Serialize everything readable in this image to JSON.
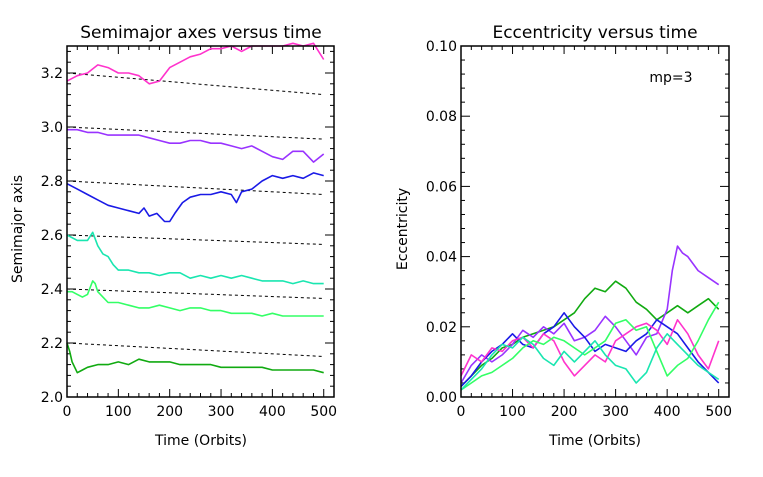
{
  "chart_data": [
    {
      "type": "line",
      "title": "Semimajor axes versus time",
      "xlabel": "Time (Orbits)",
      "ylabel": "Semimajor axis",
      "xlim": [
        0,
        520
      ],
      "ylim": [
        2.0,
        3.3
      ],
      "xticks": [
        "0",
        "100",
        "200",
        "300",
        "400",
        "500"
      ],
      "xtick_values": [
        0,
        100,
        200,
        300,
        400,
        500
      ],
      "yticks": [
        "2.0",
        "2.2",
        "2.4",
        "2.6",
        "2.8",
        "3.0",
        "3.2"
      ],
      "ytick_values": [
        2.0,
        2.2,
        2.4,
        2.6,
        2.8,
        3.0,
        3.2
      ],
      "reference_lines": [
        {
          "name": "ref-3.2",
          "x": [
            0,
            500
          ],
          "y": [
            3.2,
            3.12
          ],
          "color": "#000000",
          "dash": true
        },
        {
          "name": "ref-3.0",
          "x": [
            0,
            500
          ],
          "y": [
            3.0,
            2.955
          ],
          "color": "#000000",
          "dash": true
        },
        {
          "name": "ref-2.8",
          "x": [
            0,
            500
          ],
          "y": [
            2.8,
            2.75
          ],
          "color": "#000000",
          "dash": true
        },
        {
          "name": "ref-2.6",
          "x": [
            0,
            500
          ],
          "y": [
            2.6,
            2.565
          ],
          "color": "#000000",
          "dash": true
        },
        {
          "name": "ref-2.4",
          "x": [
            0,
            500
          ],
          "y": [
            2.4,
            2.365
          ],
          "color": "#000000",
          "dash": true
        },
        {
          "name": "ref-2.2",
          "x": [
            0,
            500
          ],
          "y": [
            2.2,
            2.15
          ],
          "color": "#000000",
          "dash": true
        }
      ],
      "series": [
        {
          "name": "magenta",
          "color": "#ff33cc",
          "x": [
            0,
            20,
            40,
            60,
            80,
            100,
            120,
            140,
            160,
            180,
            200,
            220,
            240,
            260,
            280,
            300,
            320,
            340,
            360,
            380,
            400,
            420,
            440,
            460,
            480,
            500
          ],
          "y": [
            3.17,
            3.19,
            3.2,
            3.23,
            3.22,
            3.2,
            3.2,
            3.19,
            3.16,
            3.17,
            3.22,
            3.24,
            3.26,
            3.27,
            3.29,
            3.29,
            3.3,
            3.28,
            3.3,
            3.3,
            3.3,
            3.3,
            3.31,
            3.3,
            3.31,
            3.25
          ]
        },
        {
          "name": "purple",
          "color": "#9933ff",
          "x": [
            0,
            20,
            40,
            60,
            80,
            100,
            120,
            140,
            160,
            180,
            200,
            220,
            240,
            260,
            280,
            300,
            320,
            340,
            360,
            380,
            400,
            420,
            440,
            460,
            480,
            500
          ],
          "y": [
            2.99,
            2.99,
            2.98,
            2.98,
            2.97,
            2.97,
            2.97,
            2.97,
            2.96,
            2.95,
            2.94,
            2.94,
            2.95,
            2.95,
            2.94,
            2.94,
            2.93,
            2.92,
            2.93,
            2.91,
            2.89,
            2.88,
            2.91,
            2.91,
            2.87,
            2.9
          ]
        },
        {
          "name": "blue",
          "color": "#1a1ae6",
          "x": [
            0,
            20,
            40,
            60,
            80,
            100,
            120,
            140,
            150,
            160,
            175,
            190,
            200,
            210,
            225,
            240,
            260,
            280,
            300,
            320,
            330,
            340,
            360,
            380,
            400,
            420,
            440,
            460,
            480,
            500
          ],
          "y": [
            2.79,
            2.77,
            2.75,
            2.73,
            2.71,
            2.7,
            2.69,
            2.68,
            2.7,
            2.67,
            2.68,
            2.65,
            2.65,
            2.68,
            2.72,
            2.74,
            2.75,
            2.75,
            2.76,
            2.75,
            2.72,
            2.76,
            2.77,
            2.8,
            2.82,
            2.81,
            2.82,
            2.81,
            2.83,
            2.82
          ]
        },
        {
          "name": "cyan",
          "color": "#1ae6b0",
          "x": [
            0,
            20,
            40,
            50,
            60,
            70,
            80,
            90,
            100,
            120,
            140,
            160,
            180,
            200,
            220,
            240,
            260,
            280,
            300,
            320,
            340,
            360,
            380,
            400,
            420,
            440,
            460,
            480,
            500
          ],
          "y": [
            2.6,
            2.58,
            2.58,
            2.61,
            2.56,
            2.53,
            2.52,
            2.49,
            2.47,
            2.47,
            2.46,
            2.46,
            2.45,
            2.46,
            2.46,
            2.44,
            2.45,
            2.44,
            2.45,
            2.44,
            2.45,
            2.44,
            2.43,
            2.43,
            2.43,
            2.42,
            2.43,
            2.42,
            2.42
          ]
        },
        {
          "name": "green",
          "color": "#33ff66",
          "x": [
            0,
            10,
            20,
            30,
            40,
            50,
            55,
            60,
            70,
            80,
            100,
            120,
            140,
            160,
            180,
            200,
            220,
            240,
            260,
            280,
            300,
            320,
            340,
            360,
            380,
            400,
            420,
            440,
            460,
            480,
            500
          ],
          "y": [
            2.39,
            2.39,
            2.38,
            2.37,
            2.38,
            2.43,
            2.42,
            2.39,
            2.37,
            2.35,
            2.35,
            2.34,
            2.33,
            2.33,
            2.34,
            2.33,
            2.32,
            2.33,
            2.33,
            2.32,
            2.32,
            2.31,
            2.31,
            2.31,
            2.3,
            2.31,
            2.3,
            2.3,
            2.3,
            2.3,
            2.3
          ]
        },
        {
          "name": "darkgreen",
          "color": "#11aa11",
          "x": [
            0,
            5,
            10,
            20,
            30,
            40,
            60,
            80,
            100,
            120,
            140,
            160,
            180,
            200,
            220,
            240,
            260,
            280,
            300,
            320,
            340,
            360,
            380,
            400,
            420,
            440,
            460,
            480,
            500
          ],
          "y": [
            2.2,
            2.17,
            2.13,
            2.09,
            2.1,
            2.11,
            2.12,
            2.12,
            2.13,
            2.12,
            2.14,
            2.13,
            2.13,
            2.13,
            2.12,
            2.12,
            2.12,
            2.12,
            2.11,
            2.11,
            2.11,
            2.11,
            2.11,
            2.1,
            2.1,
            2.1,
            2.1,
            2.1,
            2.09
          ]
        }
      ]
    },
    {
      "type": "line",
      "title": "Eccentricity versus time",
      "xlabel": "Time (Orbits)",
      "ylabel": "Eccentricity",
      "xlim": [
        0,
        520
      ],
      "ylim": [
        0.0,
        0.1
      ],
      "xticks": [
        "0",
        "100",
        "200",
        "300",
        "400",
        "500"
      ],
      "xtick_values": [
        0,
        100,
        200,
        300,
        400,
        500
      ],
      "yticks": [
        "0.00",
        "0.02",
        "0.04",
        "0.06",
        "0.08",
        "0.10"
      ],
      "ytick_values": [
        0.0,
        0.02,
        0.04,
        0.06,
        0.08,
        0.1
      ],
      "annotation": "mp=3",
      "series": [
        {
          "name": "darkgreen",
          "color": "#11aa11",
          "x": [
            0,
            20,
            40,
            60,
            80,
            100,
            120,
            140,
            160,
            180,
            200,
            220,
            240,
            260,
            280,
            300,
            320,
            340,
            360,
            380,
            400,
            420,
            440,
            460,
            480,
            500
          ],
          "y": [
            0.003,
            0.006,
            0.009,
            0.011,
            0.014,
            0.015,
            0.017,
            0.018,
            0.019,
            0.02,
            0.022,
            0.024,
            0.028,
            0.031,
            0.03,
            0.033,
            0.031,
            0.027,
            0.025,
            0.022,
            0.024,
            0.026,
            0.024,
            0.026,
            0.028,
            0.025
          ]
        },
        {
          "name": "purple",
          "color": "#9933ff",
          "x": [
            0,
            20,
            40,
            60,
            80,
            100,
            120,
            140,
            160,
            180,
            200,
            220,
            240,
            260,
            280,
            300,
            320,
            340,
            360,
            380,
            400,
            410,
            420,
            430,
            440,
            460,
            480,
            500
          ],
          "y": [
            0.004,
            0.009,
            0.012,
            0.01,
            0.012,
            0.015,
            0.019,
            0.017,
            0.02,
            0.018,
            0.021,
            0.016,
            0.017,
            0.019,
            0.023,
            0.02,
            0.016,
            0.012,
            0.017,
            0.018,
            0.025,
            0.036,
            0.043,
            0.041,
            0.04,
            0.036,
            0.034,
            0.032
          ]
        },
        {
          "name": "blue",
          "color": "#1a1ae6",
          "x": [
            0,
            20,
            40,
            60,
            80,
            100,
            120,
            140,
            160,
            180,
            200,
            220,
            240,
            260,
            280,
            300,
            320,
            340,
            360,
            380,
            400,
            420,
            440,
            460,
            480,
            500
          ],
          "y": [
            0.003,
            0.006,
            0.01,
            0.013,
            0.015,
            0.018,
            0.015,
            0.014,
            0.018,
            0.02,
            0.024,
            0.02,
            0.017,
            0.013,
            0.015,
            0.014,
            0.013,
            0.016,
            0.018,
            0.022,
            0.02,
            0.018,
            0.014,
            0.01,
            0.007,
            0.004
          ]
        },
        {
          "name": "magenta",
          "color": "#ff33cc",
          "x": [
            0,
            20,
            40,
            60,
            80,
            100,
            120,
            140,
            160,
            180,
            200,
            220,
            240,
            260,
            280,
            300,
            320,
            340,
            360,
            380,
            400,
            420,
            440,
            460,
            480,
            500
          ],
          "y": [
            0.006,
            0.012,
            0.01,
            0.014,
            0.013,
            0.016,
            0.017,
            0.014,
            0.018,
            0.016,
            0.01,
            0.006,
            0.009,
            0.012,
            0.01,
            0.016,
            0.018,
            0.02,
            0.021,
            0.019,
            0.015,
            0.022,
            0.018,
            0.012,
            0.008,
            0.016
          ]
        },
        {
          "name": "green",
          "color": "#33ff66",
          "x": [
            0,
            20,
            40,
            60,
            80,
            100,
            120,
            140,
            160,
            180,
            200,
            220,
            240,
            260,
            280,
            300,
            320,
            340,
            360,
            380,
            400,
            420,
            440,
            460,
            480,
            500
          ],
          "y": [
            0.002,
            0.004,
            0.006,
            0.007,
            0.009,
            0.011,
            0.014,
            0.016,
            0.015,
            0.017,
            0.016,
            0.014,
            0.012,
            0.014,
            0.016,
            0.021,
            0.022,
            0.019,
            0.02,
            0.013,
            0.006,
            0.009,
            0.011,
            0.016,
            0.022,
            0.027
          ]
        },
        {
          "name": "cyan",
          "color": "#1ae6b0",
          "x": [
            0,
            20,
            40,
            60,
            80,
            100,
            120,
            140,
            160,
            180,
            200,
            220,
            240,
            260,
            280,
            300,
            320,
            340,
            360,
            380,
            400,
            420,
            440,
            460,
            480,
            500
          ],
          "y": [
            0.002,
            0.005,
            0.008,
            0.012,
            0.015,
            0.014,
            0.017,
            0.015,
            0.011,
            0.009,
            0.013,
            0.01,
            0.013,
            0.016,
            0.012,
            0.009,
            0.008,
            0.004,
            0.007,
            0.014,
            0.018,
            0.015,
            0.012,
            0.009,
            0.007,
            0.005
          ]
        }
      ]
    }
  ]
}
